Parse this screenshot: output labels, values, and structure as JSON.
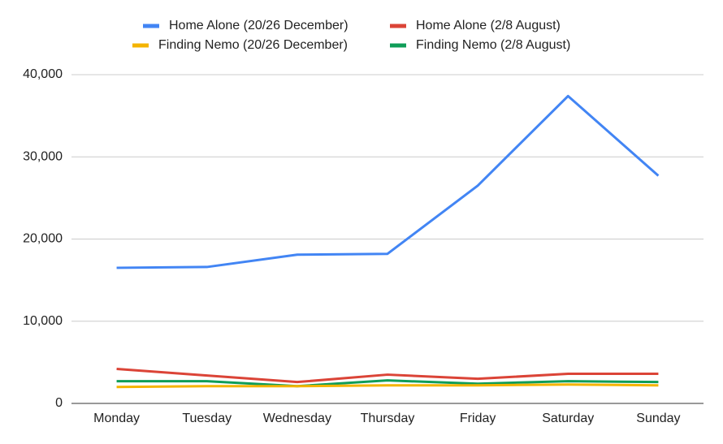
{
  "chart_data": {
    "type": "line",
    "categories": [
      "Monday",
      "Tuesday",
      "Wednesday",
      "Thursday",
      "Friday",
      "Saturday",
      "Sunday"
    ],
    "series": [
      {
        "name": "Home Alone (20/26 December)",
        "color": "#4285f4",
        "values": [
          16500,
          16600,
          18100,
          18200,
          26500,
          37400,
          27700
        ]
      },
      {
        "name": "Home Alone (2/8 August)",
        "color": "#db4437",
        "values": [
          4200,
          3400,
          2600,
          3500,
          3000,
          3600,
          3600
        ]
      },
      {
        "name": "Finding Nemo (20/26 December)",
        "color": "#f4b400",
        "values": [
          2000,
          2100,
          2100,
          2200,
          2200,
          2300,
          2200
        ]
      },
      {
        "name": "Finding Nemo (2/8 August)",
        "color": "#0f9d58",
        "values": [
          2700,
          2700,
          2100,
          2800,
          2400,
          2700,
          2600
        ]
      }
    ],
    "ylim": [
      0,
      40000
    ],
    "yticks": [
      0,
      {
        "value": 10000,
        "label": "10,000"
      },
      {
        "value": 20000,
        "label": "20,000"
      },
      {
        "value": 30000,
        "label": "30,000"
      },
      {
        "value": 40000,
        "label": "40,000"
      }
    ],
    "grid": true,
    "legend": "top"
  }
}
